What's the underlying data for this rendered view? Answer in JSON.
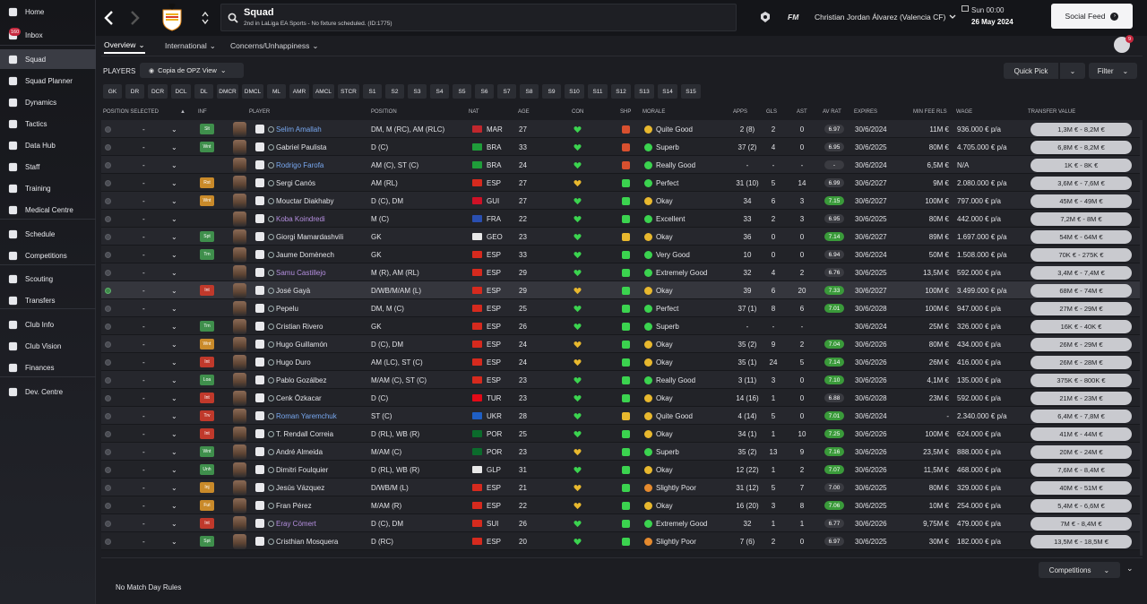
{
  "sidebar": {
    "items": [
      {
        "label": "Home",
        "icon": "home-icon"
      },
      {
        "label": "Inbox",
        "icon": "inbox-icon",
        "badge": "160"
      },
      {
        "label": "Squad",
        "icon": "squad-icon",
        "active": true
      },
      {
        "label": "Squad Planner",
        "icon": "planner-icon"
      },
      {
        "label": "Dynamics",
        "icon": "dynamics-icon"
      },
      {
        "label": "Tactics",
        "icon": "tactics-icon"
      },
      {
        "label": "Data Hub",
        "icon": "data-hub-icon"
      },
      {
        "label": "Staff",
        "icon": "staff-icon"
      },
      {
        "label": "Training",
        "icon": "training-icon"
      },
      {
        "label": "Medical Centre",
        "icon": "medical-icon"
      },
      {
        "label": "Schedule",
        "icon": "schedule-icon"
      },
      {
        "label": "Competitions",
        "icon": "trophy-icon"
      },
      {
        "label": "Scouting",
        "icon": "scouting-icon"
      },
      {
        "label": "Transfers",
        "icon": "transfers-icon"
      },
      {
        "label": "Club Info",
        "icon": "club-info-icon"
      },
      {
        "label": "Club Vision",
        "icon": "club-vision-icon"
      },
      {
        "label": "Finances",
        "icon": "finances-icon"
      },
      {
        "label": "Dev. Centre",
        "icon": "dev-centre-icon"
      }
    ]
  },
  "topbar": {
    "title": "Squad",
    "subtitle": "2nd in LaLiga EA Sports - No fixture scheduled. (ID:1775)",
    "fm": "FM",
    "manager": "Christian Jordan Álvarez (Valencia CF)",
    "time": "Sun 00:00",
    "date": "26 May 2024",
    "social_feed": "Social Feed",
    "notif_count": "9"
  },
  "tabs": [
    {
      "label": "Overview",
      "selected": true
    },
    {
      "label": "International",
      "selected": false
    },
    {
      "label": "Concerns/Unhappiness",
      "selected": false
    }
  ],
  "players_label": "PLAYERS",
  "view_select": "Copia de OPZ View",
  "quick_pick": "Quick Pick",
  "filter": "Filter",
  "positions": [
    "GK",
    "DR",
    "DCR",
    "DCL",
    "DL",
    "DMCR",
    "DMCL",
    "ML",
    "AMR",
    "AMCL",
    "STCR",
    "S1",
    "S2",
    "S3",
    "S4",
    "S5",
    "S6",
    "S7",
    "S8",
    "S9",
    "S10",
    "S11",
    "S12",
    "S13",
    "S14",
    "S15"
  ],
  "columns": {
    "position_selected": "POSITION SELECTED",
    "inf": "INF",
    "player": "PLAYER",
    "position": "POSITION",
    "nat": "NAT",
    "age": "AGE",
    "con": "CON",
    "shp": "SHP",
    "morale": "MORALE",
    "apps": "APPS",
    "gls": "GLS",
    "ast": "AST",
    "avrat": "AV RAT",
    "expires": "EXPIRES",
    "minfee": "MIN FEE RLS",
    "wage": "WAGE",
    "tv": "TRANSFER VALUE"
  },
  "colors": {
    "accent": "#1b1c21",
    "green": "#2eb84a",
    "purple": "#b58fe0",
    "blue": "#78a8f0"
  },
  "players": [
    {
      "pos_sel": "-",
      "inf": "Slt",
      "inf_color": "#3f8f4c",
      "name": "Selim Amallah",
      "name_color": "#78a8f0",
      "position": "DM, M (RC), AM (RLC)",
      "nat": "MAR",
      "flag": "#c1272d",
      "age": "27",
      "con": "#3bd34f",
      "shp": "#d8502f",
      "morale": "Quite Good",
      "morale_color": "#e8b82e",
      "apps": "2 (8)",
      "gls": "2",
      "ast": "0",
      "avrat": "6.97",
      "avr_color": "#3a3b41",
      "expires": "30/6/2024",
      "minfee": "11M €",
      "wage": "936.000 € p/a",
      "tv": "1,3M € - 8,2M €"
    },
    {
      "pos_sel": "-",
      "inf": "Wnt",
      "inf_color": "#3f8f4c",
      "name": "Gabriel Paulista",
      "name_color": "#e2e3e7",
      "position": "D (C)",
      "nat": "BRA",
      "flag": "#1f9d3a",
      "age": "33",
      "con": "#3bd34f",
      "shp": "#d8502f",
      "morale": "Superb",
      "morale_color": "#3bd34f",
      "apps": "37 (2)",
      "gls": "4",
      "ast": "0",
      "avrat": "6.95",
      "avr_color": "#3a3b41",
      "expires": "30/6/2025",
      "minfee": "80M €",
      "wage": "4.705.000 € p/a",
      "tv": "6,8M € - 8,2M €"
    },
    {
      "pos_sel": "-",
      "inf": "",
      "inf_color": "",
      "name": "Rodrigo Farofa",
      "name_color": "#78a8f0",
      "position": "AM (C), ST (C)",
      "nat": "BRA",
      "flag": "#1f9d3a",
      "age": "24",
      "con": "#3bd34f",
      "shp": "#d8502f",
      "morale": "Really Good",
      "morale_color": "#3bd34f",
      "apps": "-",
      "gls": "-",
      "ast": "-",
      "avrat": "-",
      "avr_color": "#3a3b41",
      "expires": "30/6/2024",
      "minfee": "6,5M €",
      "wage": "N/A",
      "tv": "1K € - 8K €"
    },
    {
      "pos_sel": "-",
      "inf": "Rst",
      "inf_color": "#c98a2a",
      "name": "Sergi Canós",
      "name_color": "#e2e3e7",
      "position": "AM (RL)",
      "nat": "ESP",
      "flag": "#d62a1e",
      "age": "27",
      "con": "#e8b82e",
      "shp": "#3bd34f",
      "morale": "Perfect",
      "morale_color": "#3bd34f",
      "apps": "31 (10)",
      "gls": "5",
      "ast": "14",
      "avrat": "6.99",
      "avr_color": "#3a3b41",
      "expires": "30/6/2027",
      "minfee": "9M €",
      "wage": "2.080.000 € p/a",
      "tv": "3,6M € - 7,6M €"
    },
    {
      "pos_sel": "-",
      "inf": "Wnt",
      "inf_color": "#c98a2a",
      "name": "Mouctar Diakhaby",
      "name_color": "#e2e3e7",
      "position": "D (C), DM",
      "nat": "GUI",
      "flag": "#ce1126",
      "age": "27",
      "con": "#3bd34f",
      "shp": "#3bd34f",
      "morale": "Okay",
      "morale_color": "#e8b82e",
      "apps": "34",
      "gls": "6",
      "ast": "3",
      "avrat": "7.15",
      "avr_color": "#3a9a3a",
      "expires": "30/6/2027",
      "minfee": "100M €",
      "wage": "797.000 € p/a",
      "tv": "45M € - 49M €"
    },
    {
      "pos_sel": "-",
      "inf": "",
      "inf_color": "",
      "name": "Koba Koindredi",
      "name_color": "#b58fe0",
      "position": "M (C)",
      "nat": "FRA",
      "flag": "#2a4fb0",
      "age": "22",
      "con": "#3bd34f",
      "shp": "#3bd34f",
      "morale": "Excellent",
      "morale_color": "#3bd34f",
      "apps": "33",
      "gls": "2",
      "ast": "3",
      "avrat": "6.95",
      "avr_color": "#3a3b41",
      "expires": "30/6/2025",
      "minfee": "80M €",
      "wage": "442.000 € p/a",
      "tv": "7,2M € - 8M €"
    },
    {
      "pos_sel": "-",
      "inf": "Spt",
      "inf_color": "#3f8f4c",
      "name": "Giorgi Mamardashvili",
      "name_color": "#e2e3e7",
      "position": "GK",
      "nat": "GEO",
      "flag": "#e8e8e8",
      "age": "23",
      "con": "#3bd34f",
      "shp": "#e8b82e",
      "morale": "Okay",
      "morale_color": "#e8b82e",
      "apps": "36",
      "gls": "0",
      "ast": "0",
      "avrat": "7.14",
      "avr_color": "#3a9a3a",
      "expires": "30/6/2027",
      "minfee": "89M €",
      "wage": "1.697.000 € p/a",
      "tv": "54M € - 64M €"
    },
    {
      "pos_sel": "-",
      "inf": "Trn",
      "inf_color": "#3f8f4c",
      "name": "Jaume Domènech",
      "name_color": "#e2e3e7",
      "position": "GK",
      "nat": "ESP",
      "flag": "#d62a1e",
      "age": "33",
      "con": "#3bd34f",
      "shp": "#3bd34f",
      "morale": "Very Good",
      "morale_color": "#3bd34f",
      "apps": "10",
      "gls": "0",
      "ast": "0",
      "avrat": "6.94",
      "avr_color": "#3a3b41",
      "expires": "30/6/2024",
      "minfee": "50M €",
      "wage": "1.508.000 € p/a",
      "tv": "70K € - 275K €"
    },
    {
      "pos_sel": "-",
      "inf": "",
      "inf_color": "",
      "name": "Samu Castillejo",
      "name_color": "#b58fe0",
      "position": "M (R), AM (RL)",
      "nat": "ESP",
      "flag": "#d62a1e",
      "age": "29",
      "con": "#3bd34f",
      "shp": "#3bd34f",
      "morale": "Extremely Good",
      "morale_color": "#3bd34f",
      "apps": "32",
      "gls": "4",
      "ast": "2",
      "avrat": "6.76",
      "avr_color": "#3a3b41",
      "expires": "30/6/2025",
      "minfee": "13,5M €",
      "wage": "592.000 € p/a",
      "tv": "3,4M € - 7,4M €"
    },
    {
      "pos_sel": "-",
      "inf": "Int",
      "inf_color": "#c0392b",
      "name": "José Gayà",
      "name_color": "#e2e3e7",
      "position": "D/WB/M/AM (L)",
      "nat": "ESP",
      "flag": "#d62a1e",
      "age": "29",
      "con": "#e8b82e",
      "shp": "#3bd34f",
      "morale": "Okay",
      "morale_color": "#e8b82e",
      "apps": "39",
      "gls": "6",
      "ast": "20",
      "avrat": "7.33",
      "avr_color": "#3a9a3a",
      "expires": "30/6/2027",
      "minfee": "100M €",
      "wage": "3.499.000 € p/a",
      "tv": "68M € - 74M €",
      "on": true
    },
    {
      "pos_sel": "-",
      "inf": "",
      "inf_color": "",
      "name": "Pepelu",
      "name_color": "#e2e3e7",
      "position": "DM, M (C)",
      "nat": "ESP",
      "flag": "#d62a1e",
      "age": "25",
      "con": "#3bd34f",
      "shp": "#3bd34f",
      "morale": "Perfect",
      "morale_color": "#3bd34f",
      "apps": "37 (1)",
      "gls": "8",
      "ast": "6",
      "avrat": "7.01",
      "avr_color": "#3a9a3a",
      "expires": "30/6/2028",
      "minfee": "100M €",
      "wage": "947.000 € p/a",
      "tv": "27M € - 29M €"
    },
    {
      "pos_sel": "-",
      "inf": "Trn",
      "inf_color": "#3f8f4c",
      "name": "Cristian Rivero",
      "name_color": "#e2e3e7",
      "position": "GK",
      "nat": "ESP",
      "flag": "#d62a1e",
      "age": "26",
      "con": "#3bd34f",
      "shp": "#3bd34f",
      "morale": "Superb",
      "morale_color": "#3bd34f",
      "apps": "-",
      "gls": "-",
      "ast": "-",
      "avrat": "",
      "avr_color": "",
      "expires": "30/6/2024",
      "minfee": "25M €",
      "wage": "326.000 € p/a",
      "tv": "16K € - 40K €"
    },
    {
      "pos_sel": "-",
      "inf": "Wnt",
      "inf_color": "#c98a2a",
      "name": "Hugo Guillamón",
      "name_color": "#e2e3e7",
      "position": "D (C), DM",
      "nat": "ESP",
      "flag": "#d62a1e",
      "age": "24",
      "con": "#e8b82e",
      "shp": "#3bd34f",
      "morale": "Okay",
      "morale_color": "#e8b82e",
      "apps": "35 (2)",
      "gls": "9",
      "ast": "2",
      "avrat": "7.04",
      "avr_color": "#3a9a3a",
      "expires": "30/6/2026",
      "minfee": "80M €",
      "wage": "434.000 € p/a",
      "tv": "26M € - 29M €"
    },
    {
      "pos_sel": "-",
      "inf": "Int",
      "inf_color": "#c0392b",
      "name": "Hugo Duro",
      "name_color": "#e2e3e7",
      "position": "AM (LC), ST (C)",
      "nat": "ESP",
      "flag": "#d62a1e",
      "age": "24",
      "con": "#e8b82e",
      "shp": "#3bd34f",
      "morale": "Okay",
      "morale_color": "#e8b82e",
      "apps": "35 (1)",
      "gls": "24",
      "ast": "5",
      "avrat": "7.14",
      "avr_color": "#3a9a3a",
      "expires": "30/6/2026",
      "minfee": "26M €",
      "wage": "416.000 € p/a",
      "tv": "26M € - 28M €"
    },
    {
      "pos_sel": "-",
      "inf": "Loa",
      "inf_color": "#3f8f4c",
      "name": "Pablo Gozálbez",
      "name_color": "#e2e3e7",
      "position": "M/AM (C), ST (C)",
      "nat": "ESP",
      "flag": "#d62a1e",
      "age": "23",
      "con": "#3bd34f",
      "shp": "#3bd34f",
      "morale": "Really Good",
      "morale_color": "#3bd34f",
      "apps": "3 (11)",
      "gls": "3",
      "ast": "0",
      "avrat": "7.10",
      "avr_color": "#3a9a3a",
      "expires": "30/6/2026",
      "minfee": "4,1M €",
      "wage": "135.000 € p/a",
      "tv": "375K € - 800K €"
    },
    {
      "pos_sel": "-",
      "inf": "Int",
      "inf_color": "#c0392b",
      "name": "Cenk Özkacar",
      "name_color": "#e2e3e7",
      "position": "D (C)",
      "nat": "TUR",
      "flag": "#e30a17",
      "age": "23",
      "con": "#3bd34f",
      "shp": "#3bd34f",
      "morale": "Okay",
      "morale_color": "#e8b82e",
      "apps": "14 (16)",
      "gls": "1",
      "ast": "0",
      "avrat": "6.88",
      "avr_color": "#3a3b41",
      "expires": "30/6/2028",
      "minfee": "23M €",
      "wage": "592.000 € p/a",
      "tv": "21M € - 23M €"
    },
    {
      "pos_sel": "-",
      "inf": "Trv",
      "inf_color": "#c0392b",
      "name": "Roman Yaremchuk",
      "name_color": "#78a8f0",
      "position": "ST (C)",
      "nat": "UKR",
      "flag": "#1f5fc4",
      "age": "28",
      "con": "#3bd34f",
      "shp": "#e8b82e",
      "morale": "Quite Good",
      "morale_color": "#e8b82e",
      "apps": "4 (14)",
      "gls": "5",
      "ast": "0",
      "avrat": "7.01",
      "avr_color": "#3a9a3a",
      "expires": "30/6/2024",
      "minfee": "-",
      "wage": "2.340.000 € p/a",
      "tv": "6,4M € - 7,8M €"
    },
    {
      "pos_sel": "-",
      "inf": "Int",
      "inf_color": "#c0392b",
      "name": "T. Rendall Correia",
      "name_color": "#e2e3e7",
      "position": "D (RL), WB (R)",
      "nat": "POR",
      "flag": "#0b6b2c",
      "age": "25",
      "con": "#3bd34f",
      "shp": "#3bd34f",
      "morale": "Okay",
      "morale_color": "#e8b82e",
      "apps": "34 (1)",
      "gls": "1",
      "ast": "10",
      "avrat": "7.25",
      "avr_color": "#3a9a3a",
      "expires": "30/6/2026",
      "minfee": "100M €",
      "wage": "624.000 € p/a",
      "tv": "41M € - 44M €"
    },
    {
      "pos_sel": "-",
      "inf": "Wnt",
      "inf_color": "#3f8f4c",
      "name": "André Almeida",
      "name_color": "#e2e3e7",
      "position": "M/AM (C)",
      "nat": "POR",
      "flag": "#0b6b2c",
      "age": "23",
      "con": "#e8b82e",
      "shp": "#3bd34f",
      "morale": "Superb",
      "morale_color": "#3bd34f",
      "apps": "35 (2)",
      "gls": "13",
      "ast": "9",
      "avrat": "7.16",
      "avr_color": "#3a9a3a",
      "expires": "30/6/2026",
      "minfee": "23,5M €",
      "wage": "888.000 € p/a",
      "tv": "20M € - 24M €"
    },
    {
      "pos_sel": "-",
      "inf": "Unh",
      "inf_color": "#3f8f4c",
      "name": "Dimitri Foulquier",
      "name_color": "#e2e3e7",
      "position": "D (RL), WB (R)",
      "nat": "GLP",
      "flag": "#e8e8e8",
      "age": "31",
      "con": "#3bd34f",
      "shp": "#3bd34f",
      "morale": "Okay",
      "morale_color": "#e8b82e",
      "apps": "12 (22)",
      "gls": "1",
      "ast": "2",
      "avrat": "7.07",
      "avr_color": "#3a9a3a",
      "expires": "30/6/2026",
      "minfee": "11,5M €",
      "wage": "468.000 € p/a",
      "tv": "7,6M € - 8,4M €"
    },
    {
      "pos_sel": "-",
      "inf": "Inj",
      "inf_color": "#c98a2a",
      "name": "Jesús Vázquez",
      "name_color": "#e2e3e7",
      "position": "D/WB/M (L)",
      "nat": "ESP",
      "flag": "#d62a1e",
      "age": "21",
      "con": "#e8b82e",
      "shp": "#3bd34f",
      "morale": "Slightly Poor",
      "morale_color": "#e58a2e",
      "apps": "31 (12)",
      "gls": "5",
      "ast": "7",
      "avrat": "7.00",
      "avr_color": "#3a3b41",
      "expires": "30/6/2025",
      "minfee": "80M €",
      "wage": "329.000 € p/a",
      "tv": "40M € - 51M €"
    },
    {
      "pos_sel": "-",
      "inf": "Fut",
      "inf_color": "#c98a2a",
      "name": "Fran Pérez",
      "name_color": "#e2e3e7",
      "position": "M/AM (R)",
      "nat": "ESP",
      "flag": "#d62a1e",
      "age": "22",
      "con": "#e8b82e",
      "shp": "#3bd34f",
      "morale": "Okay",
      "morale_color": "#e8b82e",
      "apps": "16 (20)",
      "gls": "3",
      "ast": "8",
      "avrat": "7.06",
      "avr_color": "#3a9a3a",
      "expires": "30/6/2025",
      "minfee": "10M €",
      "wage": "254.000 € p/a",
      "tv": "5,4M € - 6,6M €"
    },
    {
      "pos_sel": "-",
      "inf": "Int",
      "inf_color": "#c0392b",
      "name": "Eray Cömert",
      "name_color": "#b58fe0",
      "position": "D (C), DM",
      "nat": "SUI",
      "flag": "#d52b1e",
      "age": "26",
      "con": "#3bd34f",
      "shp": "#3bd34f",
      "morale": "Extremely Good",
      "morale_color": "#3bd34f",
      "apps": "32",
      "gls": "1",
      "ast": "1",
      "avrat": "6.77",
      "avr_color": "#3a3b41",
      "expires": "30/6/2026",
      "minfee": "9,75M €",
      "wage": "479.000 € p/a",
      "tv": "7M € - 8,4M €"
    },
    {
      "pos_sel": "-",
      "inf": "Spt",
      "inf_color": "#3f8f4c",
      "name": "Cristhian Mosquera",
      "name_color": "#e2e3e7",
      "position": "D (RC)",
      "nat": "ESP",
      "flag": "#d62a1e",
      "age": "20",
      "con": "#3bd34f",
      "shp": "#3bd34f",
      "morale": "Slightly Poor",
      "morale_color": "#e58a2e",
      "apps": "7 (6)",
      "gls": "2",
      "ast": "0",
      "avrat": "6.97",
      "avr_color": "#3a3b41",
      "expires": "30/6/2025",
      "minfee": "30M €",
      "wage": "182.000 € p/a",
      "tv": "13,5M € - 18,5M €"
    }
  ],
  "footer": {
    "rules": "No Match Day Rules",
    "competitions": "Competitions"
  }
}
